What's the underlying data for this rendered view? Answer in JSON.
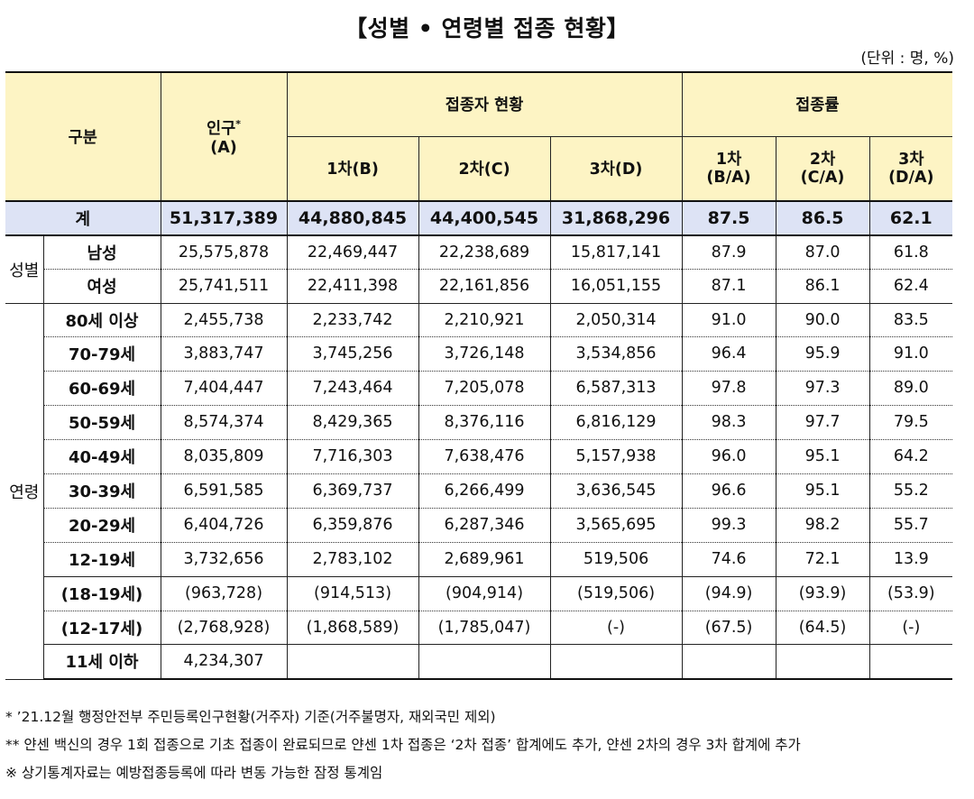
{
  "title": "【성별 • 연령별 접종 현황】",
  "unit": "(단위 : 명, %)",
  "header": {
    "category": "구분",
    "population_line1": "인구",
    "population_star": "*",
    "population_line2": "(A)",
    "vaccinated_group": "접종자 현황",
    "rate_group": "접종률",
    "dose1": "1차(B)",
    "dose2": "2차(C)",
    "dose3": "3차(D)",
    "rate1_line1": "1차",
    "rate1_line2": "(B/A)",
    "rate2_line1": "2차",
    "rate2_line2": "(C/A)",
    "rate3_line1": "3차",
    "rate3_line2": "(D/A)"
  },
  "total": {
    "label": "계",
    "population": "51,317,389",
    "dose1": "44,880,845",
    "dose2": "44,400,545",
    "dose3": "31,868,296",
    "rate1": "87.5",
    "rate2": "86.5",
    "rate3": "62.1"
  },
  "sex": {
    "group": "성별",
    "rows": [
      {
        "label": "남성",
        "population": "25,575,878",
        "dose1": "22,469,447",
        "dose2": "22,238,689",
        "dose3": "15,817,141",
        "rate1": "87.9",
        "rate2": "87.0",
        "rate3": "61.8"
      },
      {
        "label": "여성",
        "population": "25,741,511",
        "dose1": "22,411,398",
        "dose2": "22,161,856",
        "dose3": "16,051,155",
        "rate1": "87.1",
        "rate2": "86.1",
        "rate3": "62.4"
      }
    ]
  },
  "age": {
    "group": "연령",
    "rows": [
      {
        "label": "80세 이상",
        "population": "2,455,738",
        "dose1": "2,233,742",
        "dose2": "2,210,921",
        "dose3": "2,050,314",
        "rate1": "91.0",
        "rate2": "90.0",
        "rate3": "83.5"
      },
      {
        "label": "70-79세",
        "population": "3,883,747",
        "dose1": "3,745,256",
        "dose2": "3,726,148",
        "dose3": "3,534,856",
        "rate1": "96.4",
        "rate2": "95.9",
        "rate3": "91.0"
      },
      {
        "label": "60-69세",
        "population": "7,404,447",
        "dose1": "7,243,464",
        "dose2": "7,205,078",
        "dose3": "6,587,313",
        "rate1": "97.8",
        "rate2": "97.3",
        "rate3": "89.0"
      },
      {
        "label": "50-59세",
        "population": "8,574,374",
        "dose1": "8,429,365",
        "dose2": "8,376,116",
        "dose3": "6,816,129",
        "rate1": "98.3",
        "rate2": "97.7",
        "rate3": "79.5"
      },
      {
        "label": "40-49세",
        "population": "8,035,809",
        "dose1": "7,716,303",
        "dose2": "7,638,476",
        "dose3": "5,157,938",
        "rate1": "96.0",
        "rate2": "95.1",
        "rate3": "64.2"
      },
      {
        "label": "30-39세",
        "population": "6,591,585",
        "dose1": "6,369,737",
        "dose2": "6,266,499",
        "dose3": "3,636,545",
        "rate1": "96.6",
        "rate2": "95.1",
        "rate3": "55.2"
      },
      {
        "label": "20-29세",
        "population": "6,404,726",
        "dose1": "6,359,876",
        "dose2": "6,287,346",
        "dose3": "3,565,695",
        "rate1": "99.3",
        "rate2": "98.2",
        "rate3": "55.7"
      },
      {
        "label": "12-19세",
        "population": "3,732,656",
        "dose1": "2,783,102",
        "dose2": "2,689,961",
        "dose3": "519,506",
        "rate1": "74.6",
        "rate2": "72.1",
        "rate3": "13.9"
      }
    ],
    "sub_rows": [
      {
        "label": "(18-19세)",
        "population": "(963,728)",
        "dose1": "(914,513)",
        "dose2": "(904,914)",
        "dose3": "(519,506)",
        "rate1": "(94.9)",
        "rate2": "(93.9)",
        "rate3": "(53.9)"
      },
      {
        "label": "(12-17세)",
        "population": "(2,768,928)",
        "dose1": "(1,868,589)",
        "dose2": "(1,785,047)",
        "dose3": "(-)",
        "rate1": "(67.5)",
        "rate2": "(64.5)",
        "rate3": "(-)"
      }
    ],
    "under11": {
      "label": "11세 이하",
      "population": "4,234,307"
    }
  },
  "notes": [
    "* ’21.12월 행정안전부 주민등록인구현황(거주자) 기준(거주불명자, 재외국민 제외)",
    "** 얀센 백신의 경우 1회 접종으로 기초 접종이 완료되므로 얀센 1차 접종은 ‘2차 접종’ 합계에도 추가, 얀센 2차의 경우 3차 합계에 추가",
    "※ 상기통계자료는 예방접종등록에 따라 변동 가능한 잠정 통계임"
  ]
}
